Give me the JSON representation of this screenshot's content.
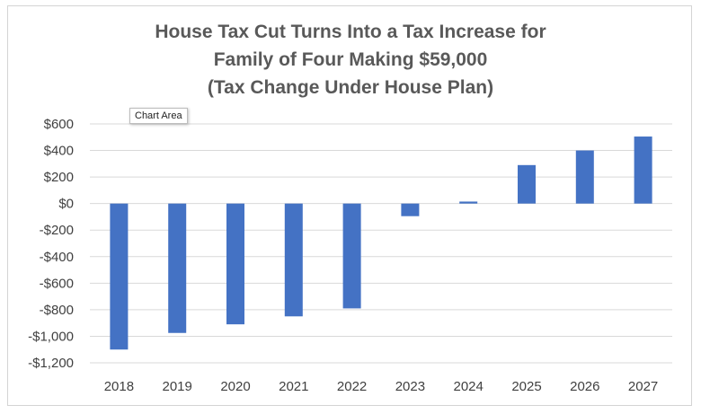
{
  "tooltip": "Chart Area",
  "chart_data": {
    "type": "bar",
    "title_lines": [
      "House Tax Cut Turns Into a Tax Increase for",
      "Family of Four Making $59,000",
      "(Tax Change Under House Plan)"
    ],
    "categories": [
      "2018",
      "2019",
      "2020",
      "2021",
      "2022",
      "2023",
      "2024",
      "2025",
      "2026",
      "2027"
    ],
    "values": [
      -1100,
      -975,
      -910,
      -850,
      -790,
      -95,
      15,
      290,
      400,
      505
    ],
    "ylim": [
      -1200,
      600
    ],
    "y_ticks": [
      600,
      400,
      200,
      0,
      -200,
      -400,
      -600,
      -800,
      -1000,
      -1200
    ],
    "y_tick_labels": [
      "$600",
      "$400",
      "$200",
      "$0",
      "-$200",
      "-$400",
      "-$600",
      "-$800",
      "-$1,000",
      "-$1,200"
    ],
    "grid": true,
    "bar_color": "#4472c4",
    "grid_color": "#d9d9d9"
  }
}
